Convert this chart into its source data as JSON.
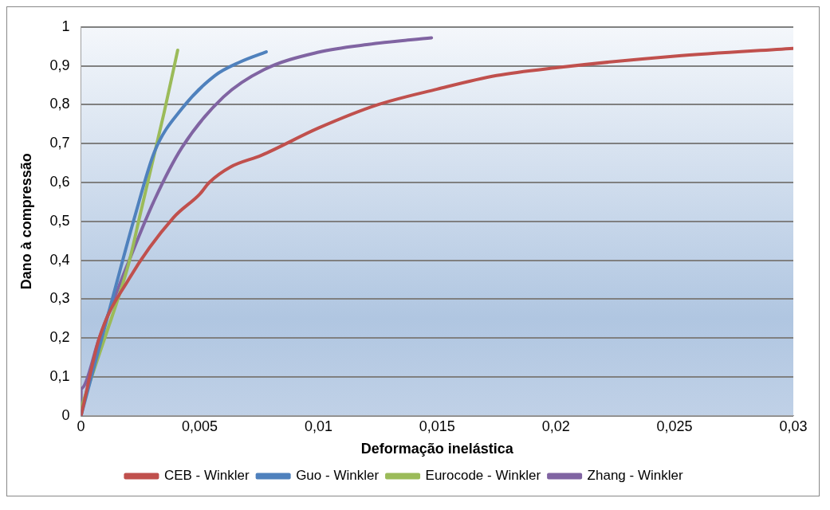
{
  "chart_data": {
    "type": "line",
    "xlabel": "Deformação inelástica",
    "ylabel": "Dano à compressão",
    "xlim": [
      0,
      0.03
    ],
    "xticks": [
      0,
      {
        "value": 0.005,
        "label": "0,005"
      },
      {
        "value": 0.01,
        "label": "0,01"
      },
      {
        "value": 0.015,
        "label": "0,015"
      },
      {
        "value": 0.02,
        "label": "0,02"
      },
      {
        "value": 0.025,
        "label": "0,025"
      },
      {
        "value": 0.03,
        "label": "0,03"
      }
    ],
    "ylim": [
      0,
      1
    ],
    "yticks": [
      0,
      {
        "value": 0.1,
        "label": "0,1"
      },
      {
        "value": 0.2,
        "label": "0,2"
      },
      {
        "value": 0.3,
        "label": "0,3"
      },
      {
        "value": 0.4,
        "label": "0,4"
      },
      {
        "value": 0.5,
        "label": "0,5"
      },
      {
        "value": 0.6,
        "label": "0,6"
      },
      {
        "value": 0.7,
        "label": "0,7"
      },
      {
        "value": 0.8,
        "label": "0,8"
      },
      {
        "value": 0.9,
        "label": "0,9"
      },
      1
    ],
    "grid": "y",
    "legend": "bottom",
    "marker": "none",
    "line_style": "solid",
    "series": [
      {
        "name": "CEB - Winkler",
        "color": "#c0504d",
        "x": [
          0,
          0.00077,
          0.002,
          0.0039,
          0.005,
          0.0054,
          0.0063,
          0.0076,
          0.01,
          0.0125,
          0.015,
          0.0175,
          0.02,
          0.025,
          0.03
        ],
        "values": [
          0,
          0.2,
          0.35,
          0.51,
          0.57,
          0.6,
          0.64,
          0.67,
          0.74,
          0.8,
          0.84,
          0.875,
          0.895,
          0.925,
          0.945
        ]
      },
      {
        "name": "Guo - Winkler",
        "color": "#4f81bd",
        "x": [
          0,
          0.00136,
          0.0023,
          0.0031,
          0.00425,
          0.00564,
          0.0067,
          0.0078
        ],
        "values": [
          0,
          0.31,
          0.52,
          0.68,
          0.79,
          0.875,
          0.91,
          0.936
        ]
      },
      {
        "name": "Eurocode - Winkler",
        "color": "#9bbb59",
        "x": [
          0,
          0.001,
          0.002,
          0.0025,
          0.003,
          0.0035,
          0.00407
        ],
        "values": [
          0.02,
          0.2,
          0.39,
          0.52,
          0.65,
          0.78,
          0.94
        ]
      },
      {
        "name": "Zhang - Winkler",
        "color": "#8064a2",
        "x": [
          0,
          0,
          0.00077,
          0.0019,
          0.0031,
          0.00425,
          0.006,
          0.0077,
          0.01,
          0.0121,
          0.01476
        ],
        "values": [
          0,
          0.07,
          0.2,
          0.38,
          0.556,
          0.69,
          0.82,
          0.89,
          0.935,
          0.955,
          0.972
        ]
      }
    ]
  }
}
